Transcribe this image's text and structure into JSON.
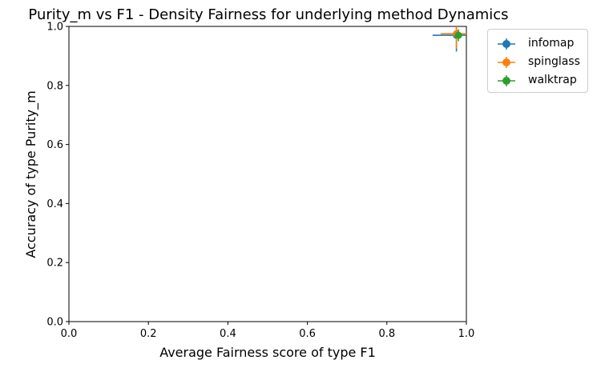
{
  "chart_data": {
    "type": "scatter",
    "title": "Purity_m vs F1 - Density Fairness for underlying method Dynamics",
    "xlabel": "Average Fairness score of type F1",
    "ylabel": "Accuracy of type Purity_m",
    "xlim": [
      0.0,
      1.0
    ],
    "ylim": [
      0.0,
      1.0
    ],
    "xticks": [
      "0.0",
      "0.2",
      "0.4",
      "0.6",
      "0.8",
      "1.0"
    ],
    "yticks": [
      "0.0",
      "0.2",
      "0.4",
      "0.6",
      "0.8",
      "1.0"
    ],
    "grid": false,
    "legend_position": "outside-top-right",
    "series": [
      {
        "name": "infomap",
        "color": "#1f77b4",
        "x": 0.975,
        "y": 0.97,
        "xerr": 0.06,
        "yerr": 0.055
      },
      {
        "name": "spinglass",
        "color": "#ff7f0e",
        "x": 0.975,
        "y": 0.975,
        "xerr": 0.04,
        "yerr": 0.05
      },
      {
        "name": "walktrap",
        "color": "#2ca02c",
        "x": 0.98,
        "y": 0.97,
        "xerr": 0.01,
        "yerr": 0.02
      }
    ]
  }
}
